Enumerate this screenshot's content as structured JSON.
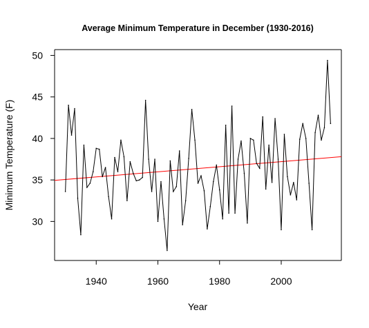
{
  "chart_data": {
    "type": "line",
    "title": "Average Minimum Temperature in December (1930-2016)",
    "xlabel": "Year",
    "ylabel": "Minimum Temperature (F)",
    "xlim": [
      1926.5,
      2019.5
    ],
    "ylim": [
      25.3,
      50.7
    ],
    "x_ticks": [
      1940,
      1960,
      1980,
      2000
    ],
    "y_ticks": [
      30,
      35,
      40,
      45,
      50
    ],
    "grid": false,
    "legend": "none",
    "colors": {
      "series": "#000000",
      "trend": "#ff0000"
    },
    "series": [
      {
        "x": [
          1930,
          1931,
          1932,
          1933,
          1934,
          1935,
          1936,
          1937,
          1938,
          1939,
          1940,
          1941,
          1942,
          1943,
          1944,
          1945,
          1946,
          1947,
          1948,
          1949,
          1950,
          1951,
          1952,
          1953,
          1954,
          1955,
          1956,
          1957,
          1958,
          1959,
          1960,
          1961,
          1962,
          1963,
          1964,
          1965,
          1966,
          1967,
          1968,
          1969,
          1970,
          1971,
          1972,
          1973,
          1974,
          1975,
          1976,
          1977,
          1978,
          1979,
          1980,
          1981,
          1982,
          1983,
          1984,
          1985,
          1986,
          1987,
          1988,
          1989,
          1990,
          1991,
          1992,
          1993,
          1994,
          1995,
          1996,
          1997,
          1998,
          1999,
          2000,
          2001,
          2002,
          2003,
          2004,
          2005,
          2006,
          2007,
          2008,
          2009,
          2010,
          2011,
          2012,
          2013,
          2014,
          2015,
          2016
        ],
        "y": [
          33.6,
          44.0,
          40.4,
          43.6,
          32.8,
          28.4,
          39.2,
          34.1,
          34.6,
          36.0,
          38.8,
          38.7,
          35.4,
          36.5,
          33.0,
          30.3,
          37.7,
          36.0,
          39.8,
          37.8,
          32.5,
          37.2,
          35.8,
          34.9,
          35.0,
          35.3,
          44.6,
          37.5,
          33.6,
          37.5,
          30.0,
          34.8,
          30.3,
          26.5,
          37.3,
          33.6,
          34.2,
          38.5,
          29.6,
          32.5,
          37.6,
          43.5,
          39.8,
          34.6,
          35.5,
          33.7,
          29.1,
          31.8,
          34.8,
          36.8,
          33.8,
          30.3,
          41.6,
          31.0,
          43.9,
          31.0,
          37.5,
          39.7,
          35.8,
          29.8,
          40.0,
          39.8,
          37.0,
          36.4,
          42.6,
          33.9,
          39.2,
          34.7,
          42.4,
          37.5,
          29.0,
          40.5,
          35.4,
          33.2,
          34.7,
          32.6,
          39.9,
          41.8,
          40.0,
          34.6,
          29.0,
          40.7,
          42.8,
          39.8,
          41.3,
          49.4,
          41.8
        ]
      },
      {
        "x": [
          1926.5,
          2019.5
        ],
        "y": [
          34.95,
          37.8
        ]
      }
    ]
  }
}
